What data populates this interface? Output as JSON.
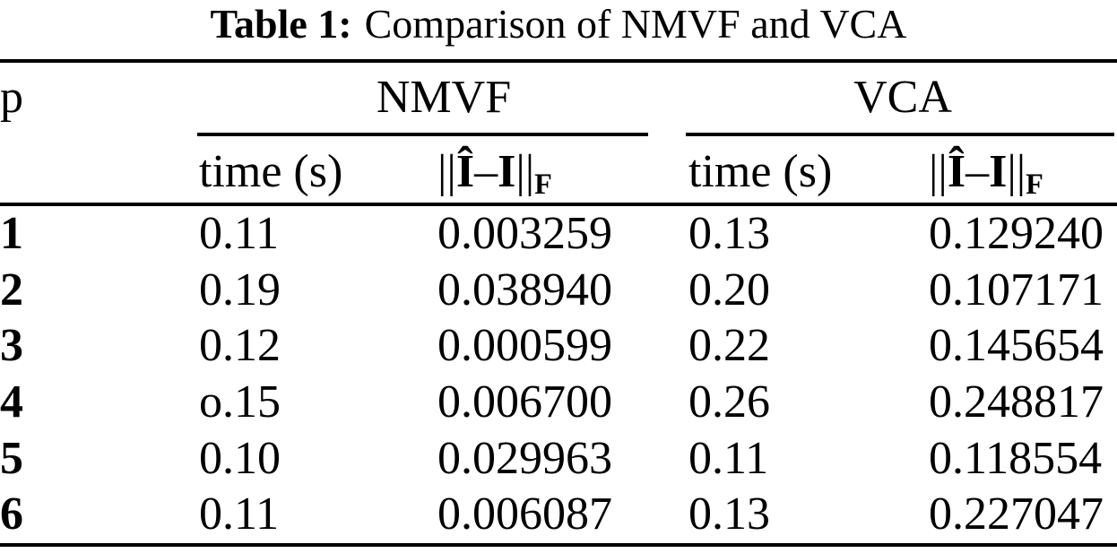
{
  "caption": {
    "label": "Table 1:",
    "text": "Comparison of NMVF and VCA"
  },
  "table": {
    "corner_header": "p",
    "groups": [
      {
        "name": "NMVF"
      },
      {
        "name": "VCA"
      }
    ],
    "subheader": {
      "time": "time (s)",
      "norm": {
        "bars_open": "||",
        "i_hat": "Î",
        "dash": "–",
        "i": "I",
        "bars_close": "||",
        "subscript": "F"
      }
    },
    "rows": [
      {
        "p": "1",
        "nmvf_time": "0.11",
        "nmvf_err": "0.003259",
        "vca_time": "0.13",
        "vca_err": "0.129240"
      },
      {
        "p": "2",
        "nmvf_time": "0.19",
        "nmvf_err": "0.038940",
        "vca_time": "0.20",
        "vca_err": "0.107171"
      },
      {
        "p": "3",
        "nmvf_time": "0.12",
        "nmvf_err": "0.000599",
        "vca_time": "0.22",
        "vca_err": "0.145654"
      },
      {
        "p": "4",
        "nmvf_time": "o.15",
        "nmvf_err": "0.006700",
        "vca_time": "0.26",
        "vca_err": "0.248817"
      },
      {
        "p": "5",
        "nmvf_time": "0.10",
        "nmvf_err": "0.029963",
        "vca_time": "0.11",
        "vca_err": "0.118554"
      },
      {
        "p": "6",
        "nmvf_time": "0.11",
        "nmvf_err": "0.006087",
        "vca_time": "0.13",
        "vca_err": "0.227047"
      }
    ]
  }
}
